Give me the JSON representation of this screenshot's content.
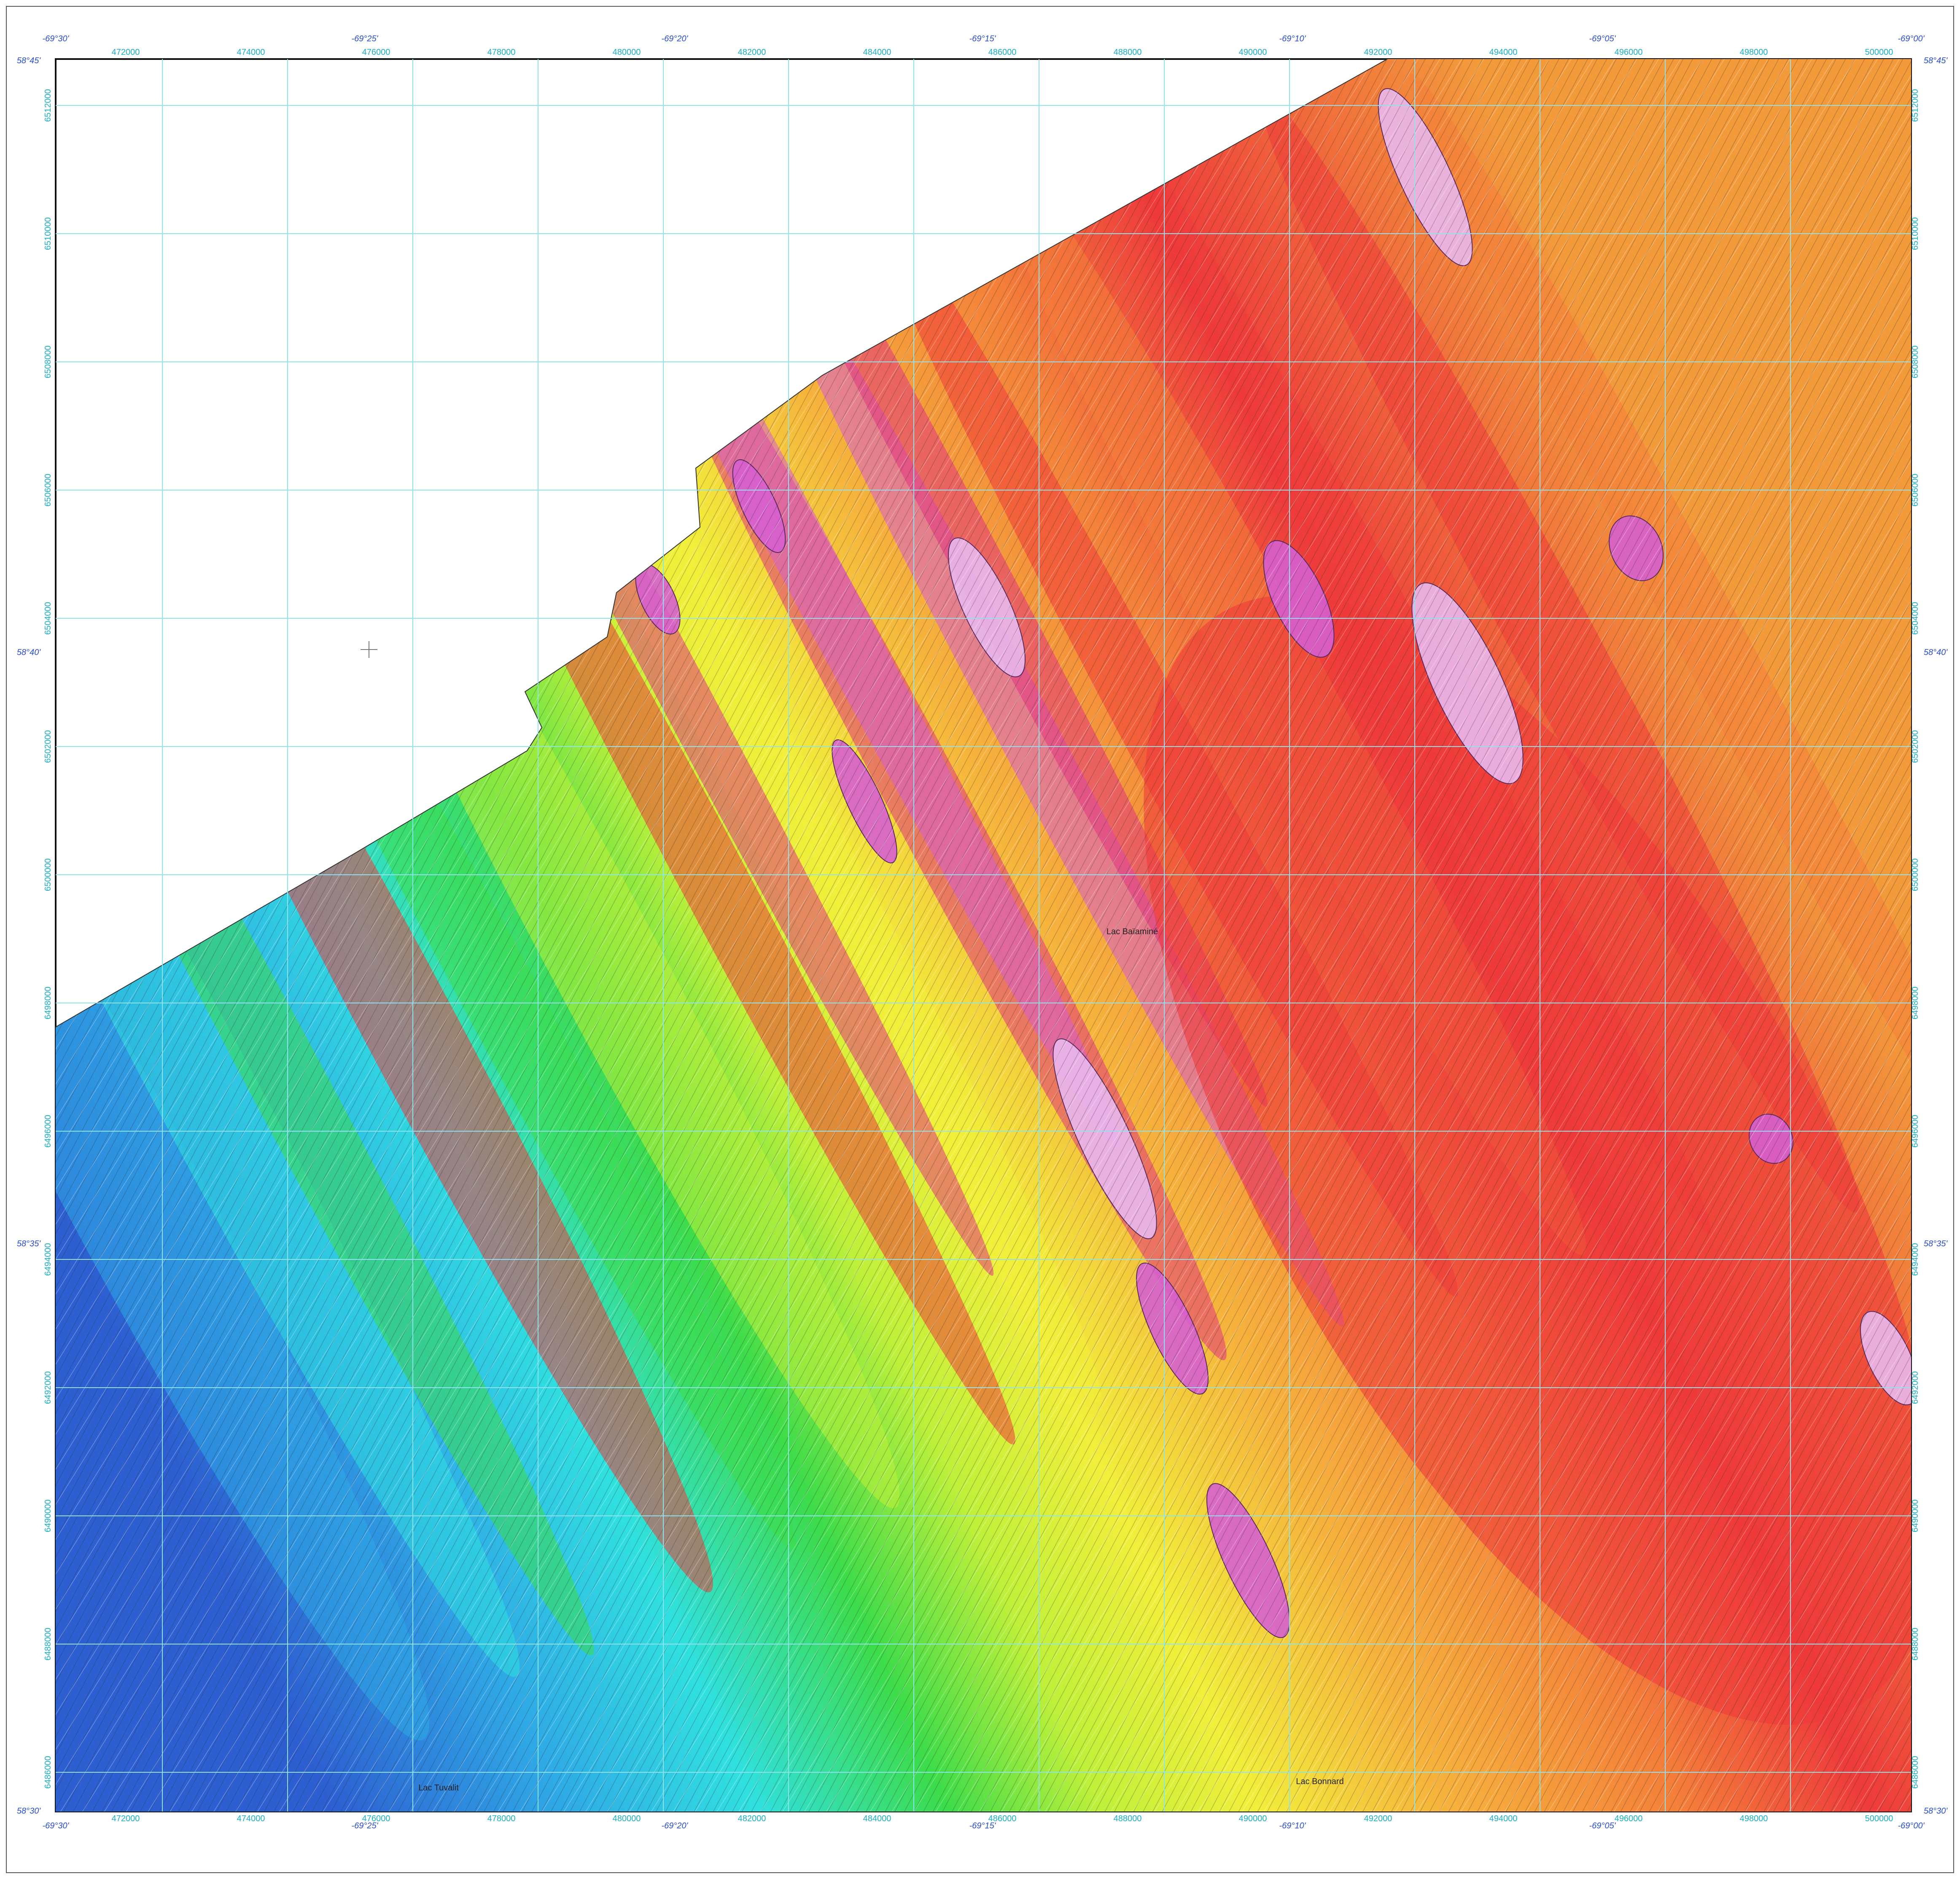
{
  "map": {
    "top_longitudes": [
      "-69°30'",
      "-69°25'",
      "-69°20'",
      "-69°15'",
      "-69°10'",
      "-69°05'",
      "-69°00'"
    ],
    "bottom_longitudes": [
      "-69°30'",
      "-69°25'",
      "-69°20'",
      "-69°15'",
      "-69°10'",
      "-69°05'",
      "-69°00'"
    ],
    "latitudes_left": [
      "58°45'",
      "58°40'",
      "58°35'",
      "58°30'"
    ],
    "latitudes_right": [
      "58°45'",
      "58°40'",
      "58°35'",
      "58°30'"
    ],
    "eastings": [
      "472000",
      "474000",
      "476000",
      "478000",
      "480000",
      "482000",
      "484000",
      "486000",
      "488000",
      "490000",
      "492000",
      "494000",
      "496000",
      "498000",
      "500000"
    ],
    "northings": [
      "6512000",
      "6510000",
      "6508000",
      "6506000",
      "6504000",
      "6502000",
      "6500000",
      "6498000",
      "6496000",
      "6494000",
      "6492000",
      "6490000",
      "6488000",
      "6486000"
    ],
    "place_names": [
      "Lac Baïaminé",
      "Lac Tuvalit",
      "Lac Bonnard"
    ],
    "colors": {
      "grid": "#8fe3ec",
      "frame": "#111111",
      "geo_label": "#2a4fd0",
      "utm_label": "#1ab0c8",
      "ramp": [
        "#2d5fd1",
        "#2fa9e6",
        "#30e0e0",
        "#3ddc4a",
        "#bff03a",
        "#f2ef3b",
        "#f6b23c",
        "#f4803a",
        "#ee3b3b",
        "#e0357f",
        "#d65fd0",
        "#e9b8ee"
      ]
    }
  }
}
